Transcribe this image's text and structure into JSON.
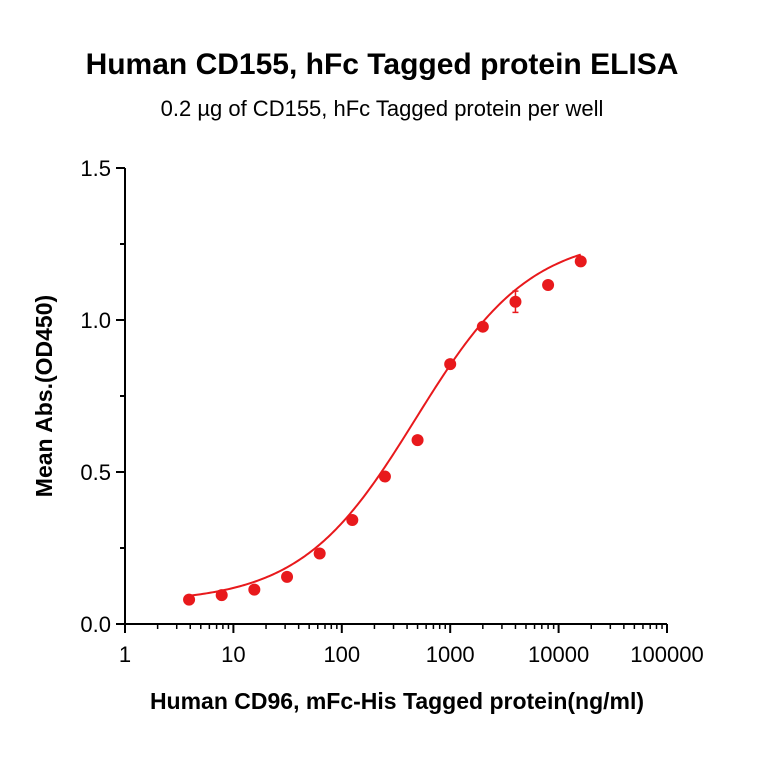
{
  "chart_data": {
    "type": "scatter",
    "title": "Human CD155, hFc Tagged protein ELISA",
    "subtitle": "0.2 µg of CD155, hFc Tagged protein per well",
    "xlabel": "Human CD96, mFc-His Tagged protein(ng/ml)",
    "ylabel": "Mean Abs.(OD450)",
    "x_scale": "log",
    "xlim": [
      1,
      100000
    ],
    "ylim": [
      0,
      1.5
    ],
    "x_ticks": [
      "1",
      "10",
      "100",
      "1000",
      "10000",
      "100000"
    ],
    "y_ticks": [
      "0.0",
      "0.5",
      "1.0",
      "1.5"
    ],
    "grid": false,
    "colors": {
      "series": "#e8191c",
      "axis": "#000000"
    },
    "series": [
      {
        "x": [
          3.9,
          7.8,
          15.6,
          31.25,
          62.5,
          125,
          250,
          500,
          1000,
          2000,
          4000,
          8000,
          16000
        ],
        "y": [
          0.08,
          0.095,
          0.113,
          0.155,
          0.232,
          0.342,
          0.485,
          0.605,
          0.855,
          0.978,
          1.06,
          1.115,
          1.193
        ],
        "err": [
          0.005,
          0.005,
          0.005,
          0.005,
          0.005,
          0.005,
          0.005,
          0.005,
          0.005,
          0.005,
          0.035,
          0.01,
          0.005
        ]
      }
    ],
    "fit_curve": {
      "model": "4PL",
      "bottom": 0.07,
      "top": 1.28,
      "ec50": 480,
      "hill": 0.82
    }
  }
}
